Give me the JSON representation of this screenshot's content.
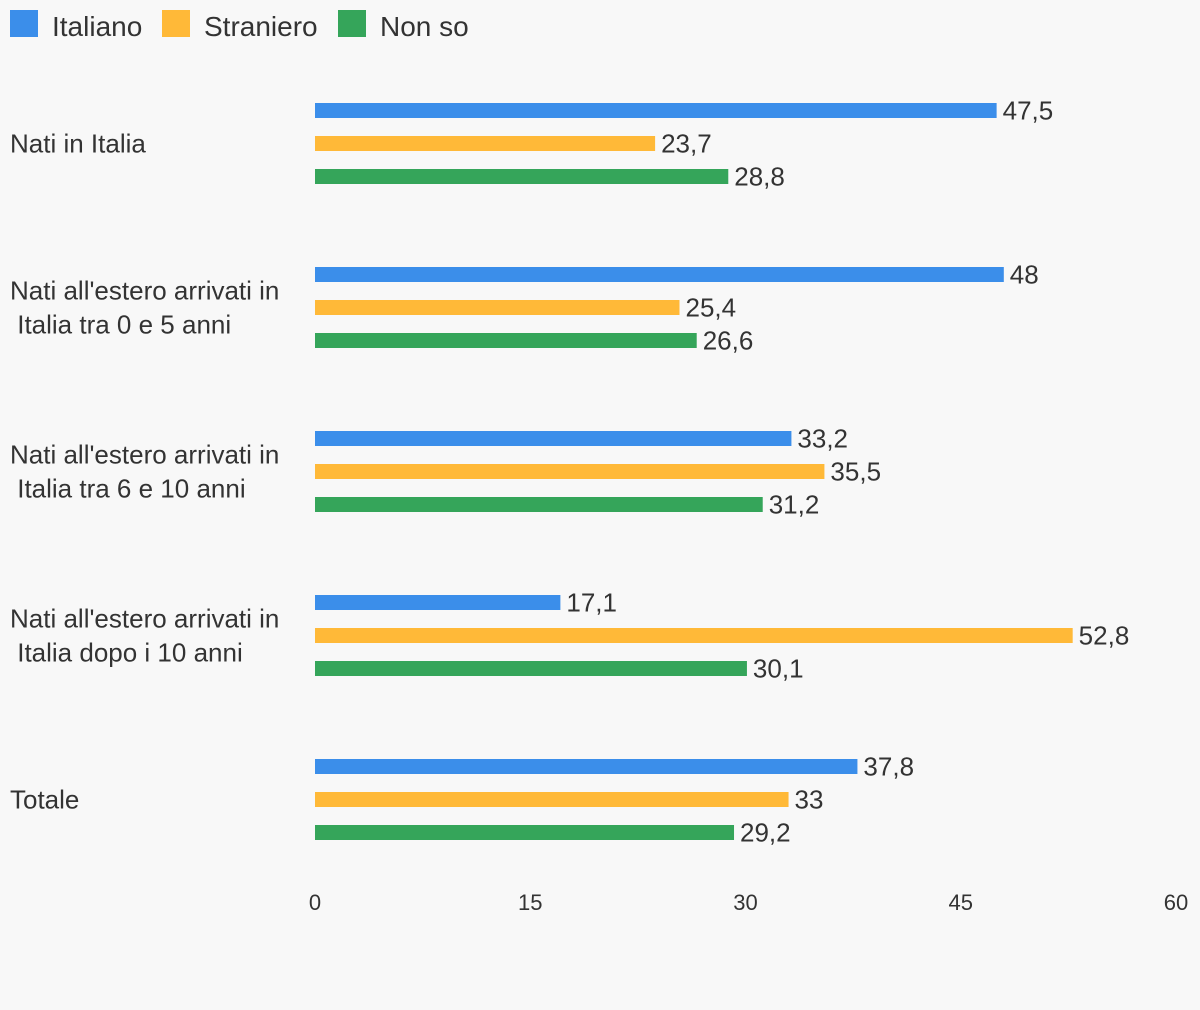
{
  "chart_data": {
    "type": "bar",
    "orientation": "horizontal",
    "categories": [
      [
        "Nati in Italia"
      ],
      [
        "Nati all'estero arrivati in",
        " Italia tra 0 e 5 anni"
      ],
      [
        "Nati all'estero arrivati in",
        " Italia tra 6 e 10 anni"
      ],
      [
        "Nati all'estero arrivati in",
        " Italia dopo i 10 anni"
      ],
      [
        "Totale"
      ]
    ],
    "series": [
      {
        "name": "Italiano",
        "color": "#3b8eea",
        "values": [
          47.5,
          48,
          33.2,
          17.1,
          37.8
        ],
        "labels": [
          "47,5",
          "48",
          "33,2",
          "17,1",
          "37,8"
        ]
      },
      {
        "name": "Straniero",
        "color": "#ffb938",
        "values": [
          23.7,
          25.4,
          35.5,
          52.8,
          33
        ],
        "labels": [
          "23,7",
          "25,4",
          "35,5",
          "52,8",
          "33"
        ]
      },
      {
        "name": "Non so",
        "color": "#35a55a",
        "values": [
          28.8,
          26.6,
          31.2,
          30.1,
          29.2
        ],
        "labels": [
          "28,8",
          "26,6",
          "31,2",
          "30,1",
          "29,2"
        ]
      }
    ],
    "xlim": [
      0,
      60
    ],
    "ticks": [
      "0",
      "15",
      "30",
      "45",
      "60"
    ],
    "legend_position": "top-left",
    "grid": false
  }
}
